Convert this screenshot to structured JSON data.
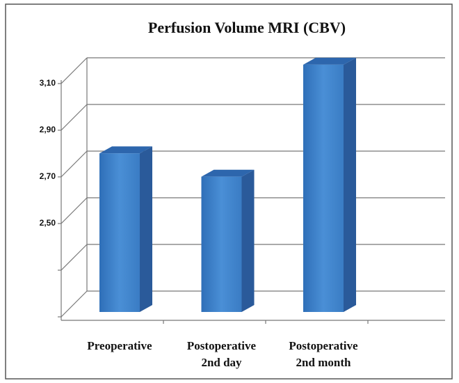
{
  "chart_data": {
    "type": "bar",
    "title": "Perfusion Volume MRI (CBV)",
    "categories": [
      [
        "Preoperative"
      ],
      [
        "Postoperative",
        "2nd day"
      ],
      [
        "Postoperative",
        "2nd month"
      ]
    ],
    "values": [
      2.78,
      2.68,
      3.16
    ],
    "color": "#3a7cc4",
    "ylim": [
      2.1,
      3.1
    ],
    "yticks": [
      {
        "value": 2.1,
        "label": null
      },
      {
        "value": 2.3,
        "label": null
      },
      {
        "value": 2.5,
        "label": "2,50"
      },
      {
        "value": 2.7,
        "label": "2,70"
      },
      {
        "value": 2.9,
        "label": "2,90"
      },
      {
        "value": 3.1,
        "label": "3,10"
      }
    ],
    "grid": true
  }
}
